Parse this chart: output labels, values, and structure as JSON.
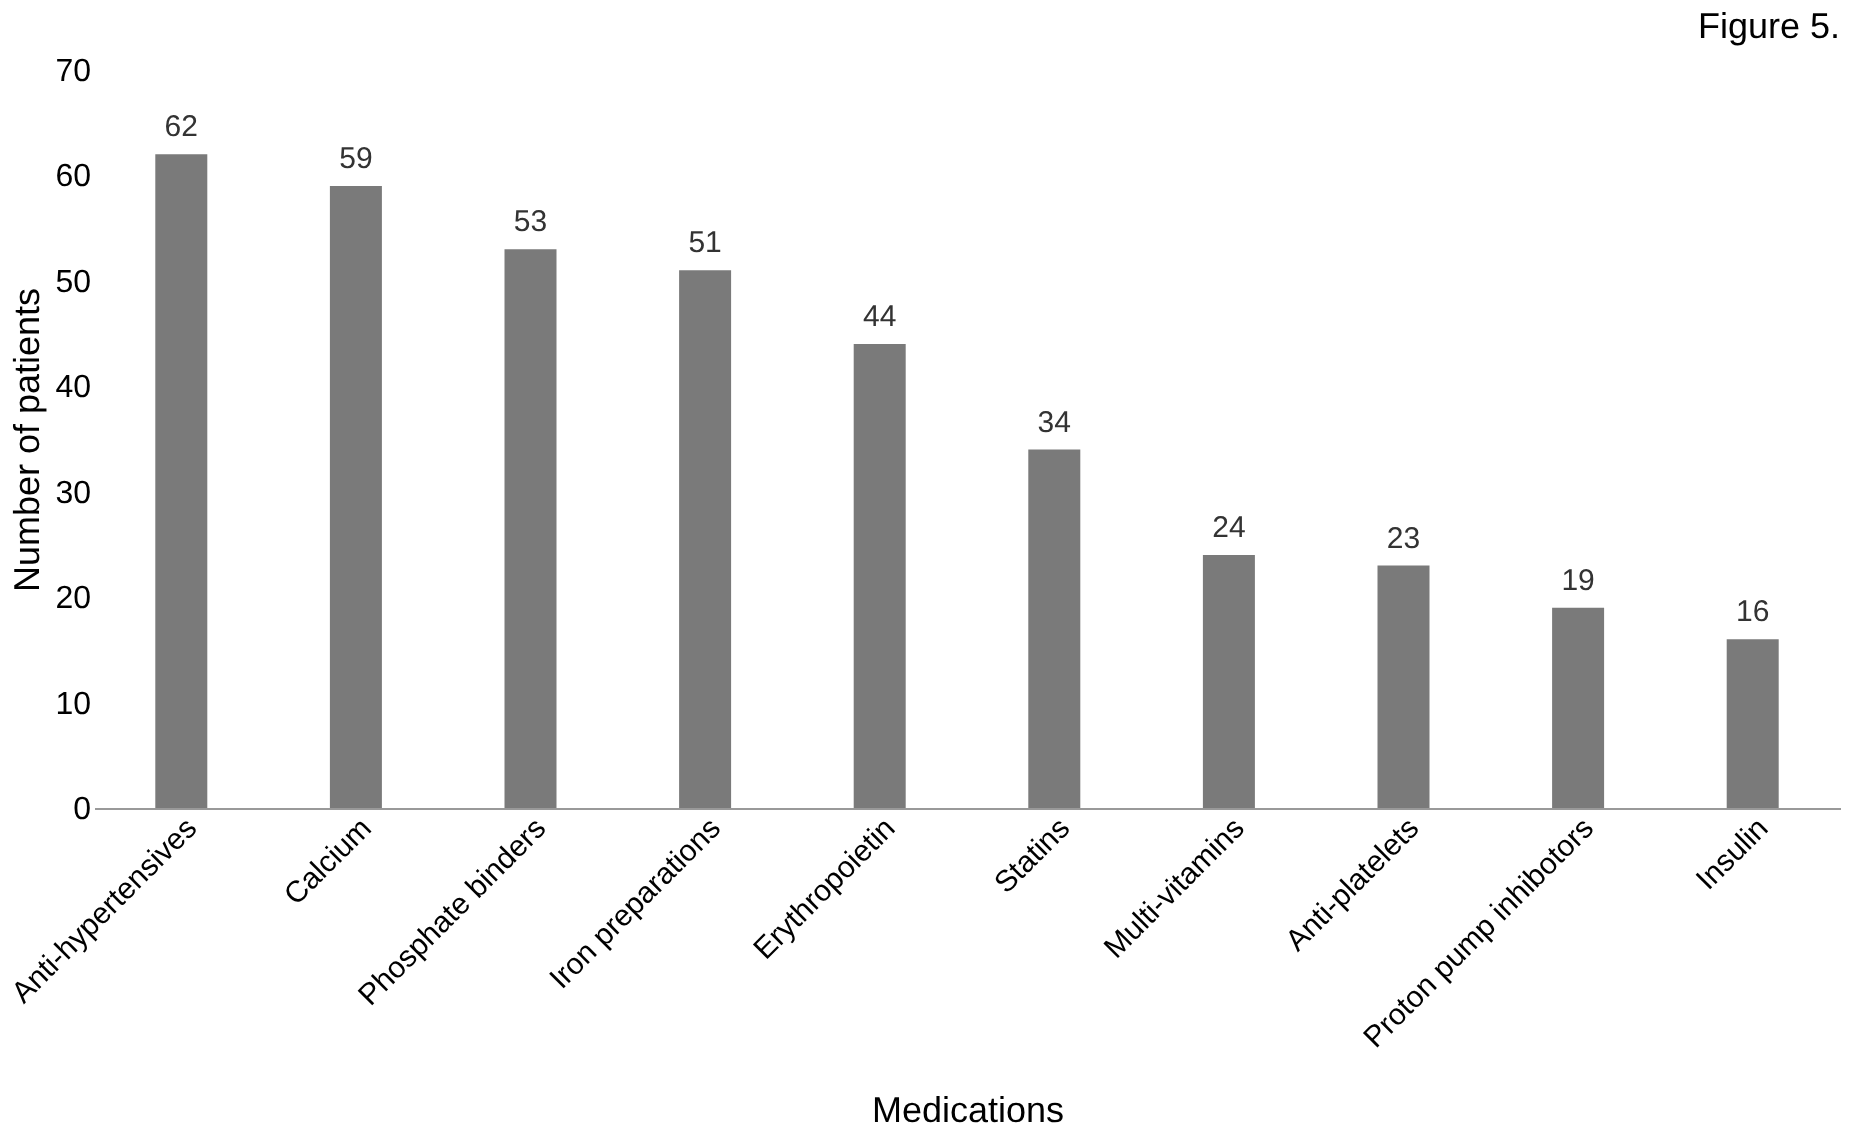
{
  "chart_data": {
    "type": "bar",
    "title": "Figure 5.",
    "xlabel": "Medications",
    "ylabel": "Number of patients",
    "categories": [
      "Anti-hypertensives",
      "Calcium",
      "Phosphate binders",
      "Iron preparations",
      "Erythropoietin",
      "Statins",
      "Multi-vitamins",
      "Anti-platelets",
      "Proton pump inhibotors",
      "Insulin"
    ],
    "values": [
      62,
      59,
      53,
      51,
      44,
      34,
      24,
      23,
      19,
      16
    ],
    "color": "#7a7a7a",
    "ylim": [
      0,
      70
    ],
    "yticks": [
      0,
      10,
      20,
      30,
      40,
      50,
      60,
      70
    ],
    "grid": false,
    "data_labels": true
  }
}
